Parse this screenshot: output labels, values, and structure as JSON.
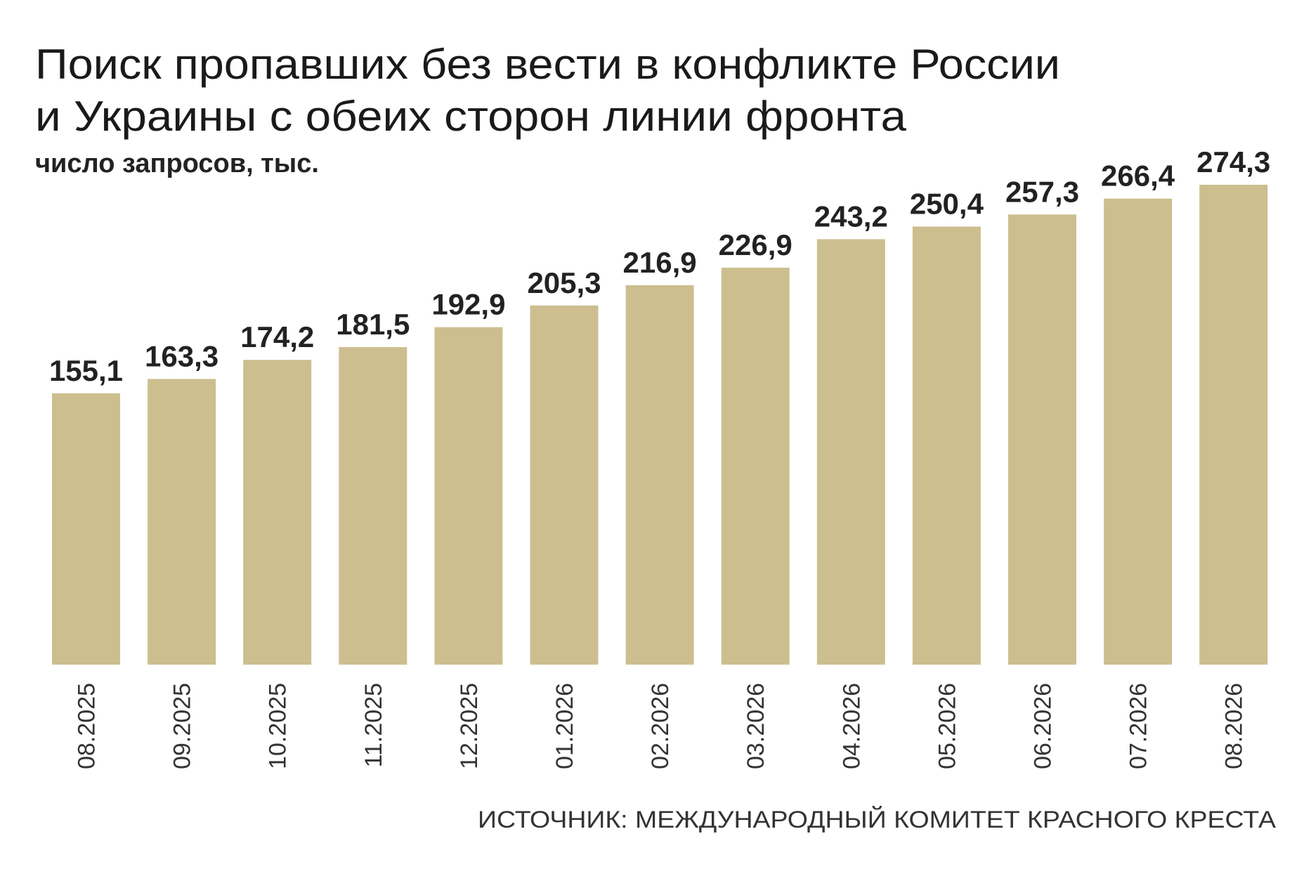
{
  "chart_data": {
    "type": "bar",
    "title": "Поиск пропавших без вести в конфликте России и Украины с обеих сторон линии фронта",
    "subtitle": "число запросов, тыс.",
    "categories": [
      "08.2025",
      "09.2025",
      "10.2025",
      "11.2025",
      "12.2025",
      "01.2026",
      "02.2026",
      "03.2026",
      "04.2026",
      "05.2026",
      "06.2026",
      "07.2026",
      "08.2026"
    ],
    "values": [
      155.1,
      163.3,
      174.2,
      181.5,
      192.9,
      205.3,
      216.9,
      226.9,
      243.2,
      250.4,
      257.3,
      266.4,
      274.3
    ],
    "value_labels": [
      "155,1",
      "163,3",
      "174,2",
      "181,5",
      "192,9",
      "205,3",
      "216,9",
      "226,9",
      "243,2",
      "250,4",
      "257,3",
      "266,4",
      "274,3"
    ],
    "color": "#cdbe8f",
    "source": "ИСТОЧНИК: МЕЖДУНАРОДНЫЙ КОМИТЕТ КРАСНОГО КРЕСТА"
  }
}
